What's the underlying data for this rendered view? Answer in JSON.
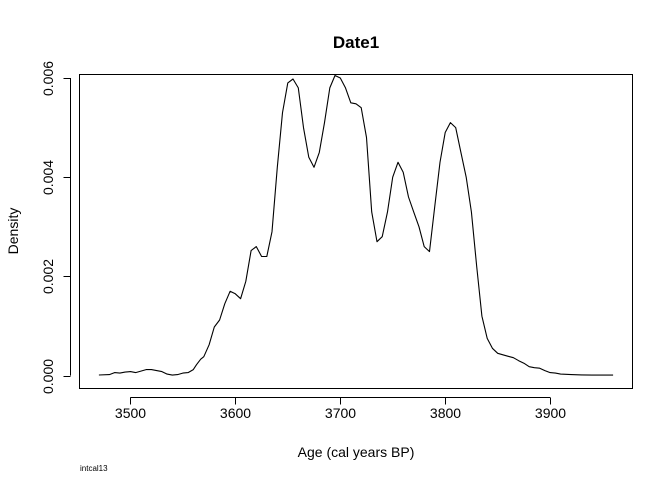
{
  "chart_data": {
    "type": "line",
    "title": "Date1",
    "xlabel": "Age (cal years BP)",
    "ylabel": "Density",
    "footnote": "intcal13",
    "xlim": [
      3452,
      3978
    ],
    "ylim": [
      -0.00025,
      0.00606
    ],
    "x_ticks": [
      3500,
      3600,
      3700,
      3800,
      3900
    ],
    "y_ticks": [
      0.0,
      0.002,
      0.004,
      0.006
    ],
    "x_tick_labels": [
      "3500",
      "3600",
      "3700",
      "3800",
      "3900"
    ],
    "y_tick_labels": [
      "0.000",
      "0.002",
      "0.004",
      "0.006"
    ],
    "grid": false,
    "series": [
      {
        "x": [
          3470,
          3480,
          3485,
          3490,
          3495,
          3500,
          3505,
          3510,
          3515,
          3520,
          3525,
          3530,
          3535,
          3540,
          3545,
          3550,
          3555,
          3560,
          3563,
          3567,
          3570,
          3575,
          3580,
          3585,
          3590,
          3595,
          3600,
          3605,
          3610,
          3615,
          3620,
          3625,
          3630,
          3635,
          3640,
          3645,
          3650,
          3655,
          3660,
          3665,
          3670,
          3675,
          3680,
          3685,
          3690,
          3695,
          3700,
          3705,
          3710,
          3715,
          3720,
          3725,
          3730,
          3735,
          3740,
          3745,
          3750,
          3755,
          3760,
          3765,
          3770,
          3775,
          3780,
          3785,
          3790,
          3795,
          3800,
          3805,
          3810,
          3815,
          3820,
          3825,
          3830,
          3835,
          3840,
          3845,
          3850,
          3855,
          3860,
          3865,
          3870,
          3875,
          3880,
          3885,
          3890,
          3895,
          3900,
          3905,
          3910,
          3920,
          3930,
          3940,
          3950,
          3960
        ],
        "y": [
          1.2e-05,
          2e-05,
          6e-05,
          5e-05,
          7e-05,
          8e-05,
          6e-05,
          9e-05,
          0.00012,
          0.00012,
          0.0001,
          8e-05,
          3e-05,
          1e-05,
          2e-05,
          5e-05,
          6e-05,
          0.00012,
          0.00022,
          0.00033,
          0.00038,
          0.00062,
          0.00098,
          0.00112,
          0.00145,
          0.0017,
          0.00165,
          0.00155,
          0.0019,
          0.00252,
          0.0026,
          0.0024,
          0.0024,
          0.0029,
          0.0042,
          0.0053,
          0.0059,
          0.00598,
          0.0058,
          0.005,
          0.0044,
          0.0042,
          0.0045,
          0.0051,
          0.0058,
          0.00605,
          0.006,
          0.0058,
          0.0055,
          0.00548,
          0.0054,
          0.0048,
          0.0033,
          0.0027,
          0.0028,
          0.0033,
          0.004,
          0.0043,
          0.0041,
          0.0036,
          0.0033,
          0.003,
          0.0026,
          0.0025,
          0.0034,
          0.0043,
          0.0049,
          0.0051,
          0.005,
          0.0045,
          0.004,
          0.0033,
          0.0022,
          0.0012,
          0.00075,
          0.00055,
          0.00045,
          0.00042,
          0.00039,
          0.00036,
          0.0003,
          0.00025,
          0.00018,
          0.00016,
          0.00015,
          0.0001,
          6e-05,
          5e-05,
          3e-05,
          2e-05,
          1.5e-05,
          1e-05,
          1e-05,
          1e-05
        ]
      }
    ]
  }
}
